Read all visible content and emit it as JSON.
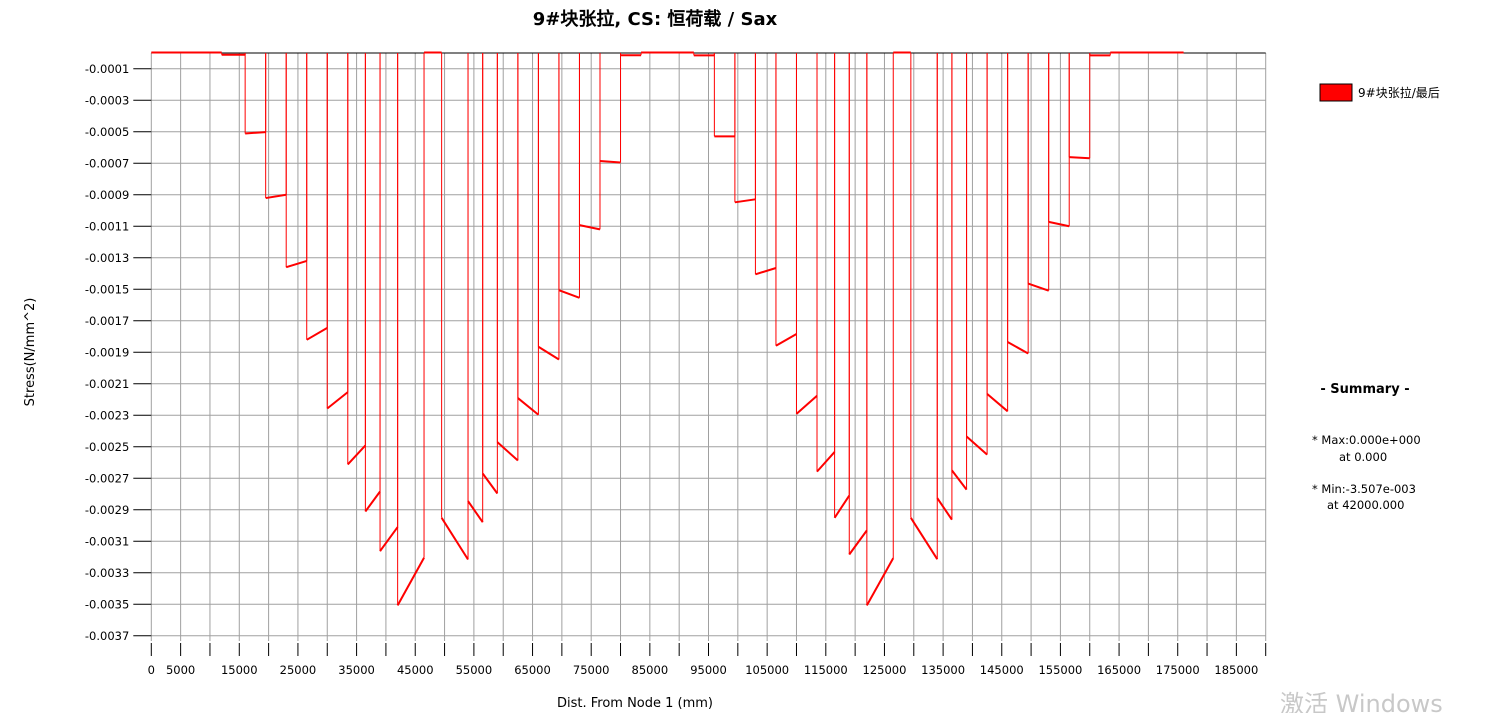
{
  "chart_data": {
    "type": "line",
    "title": "9#块张拉, CS: 恒荷载 / Sax",
    "xlabel": "Dist. From Node 1 (mm)",
    "ylabel": "Stress(N/mm^2)",
    "xlim": [
      0,
      190000
    ],
    "ylim": [
      -0.00375,
      0
    ],
    "grid": true,
    "x_ticks": [
      0,
      5000,
      10000,
      15000,
      20000,
      25000,
      30000,
      35000,
      40000,
      45000,
      50000,
      55000,
      60000,
      65000,
      70000,
      75000,
      80000,
      85000,
      90000,
      95000,
      100000,
      105000,
      110000,
      115000,
      120000,
      125000,
      130000,
      135000,
      140000,
      145000,
      150000,
      155000,
      160000,
      165000,
      170000,
      175000,
      180000,
      185000,
      190000
    ],
    "x_tick_labels": [
      {
        "value": 0,
        "label": "0"
      },
      {
        "value": 5000,
        "label": "5000"
      },
      {
        "value": 15000,
        "label": "15000"
      },
      {
        "value": 25000,
        "label": "25000"
      },
      {
        "value": 35000,
        "label": "35000"
      },
      {
        "value": 45000,
        "label": "45000"
      },
      {
        "value": 55000,
        "label": "55000"
      },
      {
        "value": 65000,
        "label": "65000"
      },
      {
        "value": 75000,
        "label": "75000"
      },
      {
        "value": 85000,
        "label": "85000"
      },
      {
        "value": 95000,
        "label": "95000"
      },
      {
        "value": 105000,
        "label": "105000"
      },
      {
        "value": 115000,
        "label": "115000"
      },
      {
        "value": 125000,
        "label": "125000"
      },
      {
        "value": 135000,
        "label": "135000"
      },
      {
        "value": 145000,
        "label": "145000"
      },
      {
        "value": 155000,
        "label": "155000"
      },
      {
        "value": 165000,
        "label": "165000"
      },
      {
        "value": 175000,
        "label": "175000"
      },
      {
        "value": 185000,
        "label": "185000"
      }
    ],
    "y_tick_labels": [
      {
        "value": -0.0001,
        "label": "-0.0001"
      },
      {
        "value": -0.0003,
        "label": "-0.0003"
      },
      {
        "value": -0.0005,
        "label": "-0.0005"
      },
      {
        "value": -0.0007,
        "label": "-0.0007"
      },
      {
        "value": -0.0009,
        "label": "-0.0009"
      },
      {
        "value": -0.0011,
        "label": "-0.0011"
      },
      {
        "value": -0.0013,
        "label": "-0.0013"
      },
      {
        "value": -0.0015,
        "label": "-0.0015"
      },
      {
        "value": -0.0017,
        "label": "-0.0017"
      },
      {
        "value": -0.0019,
        "label": "-0.0019"
      },
      {
        "value": -0.0021,
        "label": "-0.0021"
      },
      {
        "value": -0.0023,
        "label": "-0.0023"
      },
      {
        "value": -0.0025,
        "label": "-0.0025"
      },
      {
        "value": -0.0027,
        "label": "-0.0027"
      },
      {
        "value": -0.0029,
        "label": "-0.0029"
      },
      {
        "value": -0.0031,
        "label": "-0.0031"
      },
      {
        "value": -0.0033,
        "label": "-0.0033"
      },
      {
        "value": -0.0035,
        "label": "-0.0035"
      },
      {
        "value": -0.0037,
        "label": "-0.0037"
      }
    ],
    "series": [
      {
        "name": "9#块张拉/最后",
        "color": "#ff0000",
        "elements": [
          [
            0,
            12000,
            0,
            0
          ],
          [
            12000,
            16000,
            -1.1e-05,
            -1.1e-05
          ],
          [
            16000,
            19500,
            -0.000511,
            -0.000502
          ],
          [
            19500,
            23000,
            -0.000921,
            -0.0009
          ],
          [
            23000,
            26500,
            -0.00136,
            -0.00132
          ],
          [
            26500,
            30000,
            -0.001821,
            -0.001745
          ],
          [
            30000,
            33500,
            -0.002257,
            -0.002153
          ],
          [
            33500,
            36500,
            -0.002612,
            -0.002492
          ],
          [
            36500,
            39000,
            -0.002911,
            -0.002784
          ],
          [
            39000,
            42000,
            -0.003163,
            -0.00301
          ],
          [
            42000,
            46500,
            -0.003507,
            -0.003205
          ],
          [
            46500,
            49500,
            0,
            0
          ],
          [
            49500,
            54000,
            -0.002951,
            -0.003216
          ],
          [
            54000,
            56500,
            -0.002845,
            -0.002979
          ],
          [
            56500,
            59000,
            -0.00267,
            -0.002797
          ],
          [
            59000,
            62500,
            -0.002471,
            -0.002587
          ],
          [
            62500,
            66000,
            -0.002191,
            -0.002297
          ],
          [
            66000,
            69500,
            -0.001865,
            -0.001946
          ],
          [
            69500,
            73000,
            -0.001506,
            -0.001554
          ],
          [
            73000,
            76500,
            -0.001093,
            -0.00112
          ],
          [
            76500,
            80000,
            -0.000686,
            -0.000695
          ],
          [
            80000,
            83500,
            -1.4e-05,
            -1.4e-05
          ],
          [
            83500,
            92500,
            0,
            0
          ],
          [
            92500,
            96000,
            -1.5e-05,
            -1.5e-05
          ],
          [
            96000,
            99500,
            -0.000529,
            -0.000529
          ],
          [
            99500,
            103000,
            -0.000948,
            -0.000929
          ],
          [
            103000,
            106500,
            -0.001405,
            -0.001365
          ],
          [
            106500,
            110000,
            -0.001859,
            -0.001784
          ],
          [
            110000,
            113500,
            -0.002291,
            -0.002176
          ],
          [
            113500,
            116500,
            -0.002658,
            -0.002533
          ],
          [
            116500,
            119000,
            -0.002951,
            -0.00281
          ],
          [
            119000,
            122000,
            -0.003184,
            -0.003031
          ],
          [
            122000,
            126500,
            -0.003507,
            -0.003207
          ],
          [
            126500,
            129500,
            0,
            0
          ],
          [
            129500,
            134000,
            -0.002951,
            -0.003214
          ],
          [
            134000,
            136500,
            -0.002826,
            -0.002963
          ],
          [
            136500,
            139000,
            -0.00265,
            -0.002772
          ],
          [
            139000,
            142500,
            -0.002435,
            -0.00255
          ],
          [
            142500,
            146000,
            -0.002164,
            -0.002275
          ],
          [
            146000,
            149500,
            -0.001835,
            -0.001908
          ],
          [
            149500,
            153000,
            -0.001464,
            -0.001509
          ],
          [
            153000,
            156500,
            -0.001072,
            -0.0011
          ],
          [
            156500,
            160000,
            -0.000661,
            -0.000668
          ],
          [
            160000,
            163500,
            -1.5e-05,
            -1.5e-05
          ],
          [
            163500,
            176000,
            0,
            0
          ]
        ]
      }
    ],
    "legend": {
      "position": "top-right",
      "label": "9#块张拉/最后",
      "color": "#ff0000"
    },
    "summary": {
      "title": "- Summary -",
      "max_line": "* Max:0.000e+000",
      "max_at": "at  0.000",
      "min_line": "* Min:-3.507e-003",
      "min_at": "at 42000.000"
    }
  },
  "watermark": "激活 Windows"
}
